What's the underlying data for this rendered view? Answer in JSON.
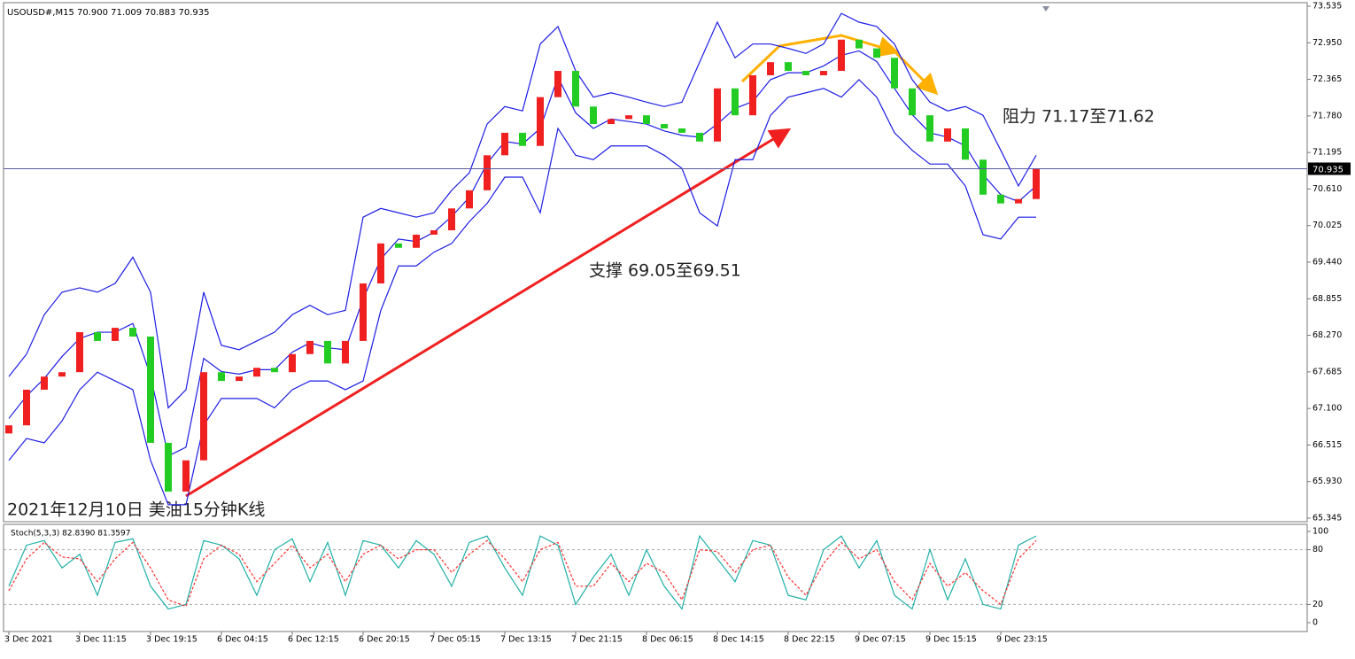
{
  "chart_data": [
    {
      "type": "candlestick",
      "title": "USOUSD#,M15 70.900 71.009 70.883 70.935",
      "open": [
        66.7,
        66.83,
        67.4,
        67.61,
        67.68,
        68.32,
        68.18,
        68.39,
        68.25,
        66.55,
        65.77,
        66.27,
        67.68,
        67.54,
        67.61,
        67.75,
        67.68,
        67.97,
        68.18,
        67.82,
        68.18,
        69.1,
        69.74,
        69.67,
        69.88,
        69.95,
        70.3,
        70.59,
        71.15,
        71.51,
        71.3,
        72.08,
        72.5,
        71.93,
        71.65,
        71.73,
        71.79,
        71.65,
        71.58,
        71.51,
        71.37,
        72.22,
        71.79,
        72.43,
        72.64,
        72.5,
        72.43,
        72.5,
        73.0,
        72.86,
        72.71,
        72.22,
        71.79,
        71.37,
        71.58,
        71.08,
        70.52,
        70.38,
        70.45
      ],
      "close": [
        66.83,
        67.4,
        67.61,
        67.68,
        68.32,
        68.18,
        68.39,
        68.25,
        66.55,
        65.77,
        66.27,
        67.68,
        67.54,
        67.61,
        67.75,
        67.68,
        67.97,
        68.18,
        67.82,
        68.18,
        69.1,
        69.74,
        69.67,
        69.88,
        69.95,
        70.3,
        70.59,
        71.15,
        71.51,
        71.3,
        72.08,
        72.5,
        71.93,
        71.65,
        71.73,
        71.79,
        71.65,
        71.58,
        71.51,
        71.37,
        72.22,
        71.79,
        72.43,
        72.64,
        72.5,
        72.43,
        72.5,
        73.0,
        72.86,
        72.71,
        72.22,
        71.79,
        71.37,
        71.58,
        71.08,
        70.52,
        70.38,
        70.45,
        70.94
      ],
      "up_color": "#f02020",
      "down_color": "#22cc22",
      "series": [
        {
          "color": "#1c1ce6",
          "values": [
            67.61,
            67.97,
            68.6,
            68.96,
            69.03,
            68.96,
            69.1,
            69.52,
            68.96,
            67.11,
            67.4,
            68.96,
            68.11,
            68.04,
            68.18,
            68.32,
            68.6,
            68.75,
            68.6,
            68.67,
            70.16,
            70.3,
            70.23,
            70.16,
            70.23,
            70.59,
            70.87,
            71.65,
            71.93,
            71.86,
            72.93,
            73.21,
            72.5,
            72.08,
            72.15,
            72.08,
            72.0,
            71.93,
            72.0,
            72.64,
            73.28,
            72.71,
            72.93,
            72.93,
            72.86,
            72.78,
            72.93,
            73.42,
            73.28,
            73.21,
            72.93,
            72.36,
            72.0,
            71.86,
            71.93,
            71.79,
            71.23,
            70.66,
            71.15
          ]
        },
        {
          "color": "#1c1ce6",
          "values": [
            66.94,
            67.3,
            67.58,
            67.93,
            68.22,
            68.32,
            68.32,
            68.46,
            67.62,
            66.34,
            66.48,
            67.9,
            67.69,
            67.65,
            67.72,
            67.72,
            68.0,
            68.15,
            68.07,
            68.04,
            68.85,
            69.49,
            69.81,
            69.77,
            69.92,
            70.17,
            70.48,
            71.02,
            71.37,
            71.33,
            71.58,
            72.4,
            71.83,
            71.58,
            71.73,
            71.69,
            71.65,
            71.54,
            71.47,
            71.44,
            71.65,
            71.9,
            72.01,
            72.36,
            72.47,
            72.47,
            72.58,
            72.75,
            72.82,
            72.65,
            72.22,
            71.8,
            71.51,
            71.44,
            71.3,
            70.84,
            70.52,
            70.41,
            70.66
          ]
        },
        {
          "color": "#1c1ce6",
          "values": [
            66.27,
            66.62,
            66.55,
            66.9,
            67.4,
            67.68,
            67.54,
            67.4,
            66.27,
            65.56,
            65.56,
            66.83,
            67.26,
            67.26,
            67.26,
            67.11,
            67.4,
            67.54,
            67.54,
            67.4,
            67.54,
            68.67,
            69.38,
            69.38,
            69.6,
            69.74,
            70.09,
            70.38,
            70.8,
            70.8,
            70.23,
            71.58,
            71.15,
            71.08,
            71.3,
            71.3,
            71.3,
            71.15,
            70.94,
            70.23,
            70.02,
            71.08,
            71.08,
            71.79,
            72.08,
            72.15,
            72.22,
            72.08,
            72.36,
            72.08,
            71.51,
            71.23,
            71.01,
            71.01,
            70.66,
            69.88,
            69.81,
            70.16,
            70.16
          ]
        }
      ],
      "ylim": [
        65.345,
        73.535
      ],
      "yticks": [
        73.535,
        {
          "value": 72.95,
          "label": "72.950"
        },
        72.365,
        {
          "value": 71.78,
          "label": "71.780"
        },
        71.195,
        {
          "value": 70.61,
          "label": "70.610"
        },
        70.025,
        {
          "value": 69.44,
          "label": "69.440"
        },
        68.855,
        {
          "value": 68.27,
          "label": "68.270"
        },
        67.685,
        {
          "value": 67.1,
          "label": "67.100"
        },
        66.515,
        {
          "value": 65.93,
          "label": "65.930"
        },
        65.345
      ],
      "xticks": [
        {
          "value": 0,
          "label": "3 Dec 2021"
        },
        {
          "value": 4,
          "label": "3 Dec 11:15"
        },
        {
          "value": 8,
          "label": "3 Dec 19:15"
        },
        {
          "value": 12,
          "label": "6 Dec 04:15"
        },
        {
          "value": 16,
          "label": "6 Dec 12:15"
        },
        {
          "value": 20,
          "label": "6 Dec 20:15"
        },
        {
          "value": 24,
          "label": "7 Dec 05:15"
        },
        {
          "value": 28,
          "label": "7 Dec 13:15"
        },
        {
          "value": 32,
          "label": "7 Dec 21:15"
        },
        {
          "value": 36,
          "label": "8 Dec 06:15"
        },
        {
          "value": 40,
          "label": "8 Dec 14:15"
        },
        {
          "value": 44,
          "label": "8 Dec 22:15"
        },
        {
          "value": 48,
          "label": "9 Dec 07:15"
        },
        {
          "value": 52,
          "label": "9 Dec 15:15"
        },
        {
          "value": 56,
          "label": "9 Dec 23:15"
        }
      ],
      "current_price": {
        "value": 70.935,
        "label": "70.935"
      },
      "annotations": [
        "支撑 69.05至69.51",
        "阻力 71.17至71.62",
        "2021年12月10日 美油15分钟K线"
      ]
    },
    {
      "type": "line",
      "title": "Stoch(5,3,3) 82.8390 81.3597",
      "series": [
        {
          "color": "#20b0a8",
          "dashed": false,
          "values": [
            40,
            85,
            90,
            60,
            75,
            30,
            88,
            92,
            40,
            15,
            20,
            90,
            85,
            70,
            30,
            80,
            92,
            45,
            88,
            30,
            90,
            85,
            60,
            90,
            75,
            40,
            88,
            95,
            60,
            30,
            95,
            85,
            20,
            50,
            75,
            30,
            80,
            40,
            15,
            95,
            70,
            45,
            90,
            85,
            30,
            25,
            80,
            95,
            60,
            90,
            30,
            15,
            80,
            25,
            70,
            20,
            15,
            85,
            95
          ]
        },
        {
          "color": "#ff3030",
          "dashed": true,
          "values": [
            35,
            70,
            88,
            72,
            70,
            45,
            70,
            88,
            60,
            25,
            18,
            70,
            85,
            75,
            45,
            65,
            85,
            60,
            75,
            45,
            75,
            85,
            70,
            80,
            80,
            55,
            75,
            90,
            70,
            45,
            80,
            88,
            40,
            40,
            65,
            45,
            65,
            55,
            25,
            80,
            78,
            55,
            80,
            85,
            50,
            30,
            65,
            88,
            70,
            80,
            45,
            25,
            65,
            40,
            55,
            35,
            20,
            70,
            90
          ]
        }
      ],
      "ylim": [
        0,
        100
      ],
      "yticks": [
        100,
        80,
        20,
        0
      ]
    }
  ]
}
